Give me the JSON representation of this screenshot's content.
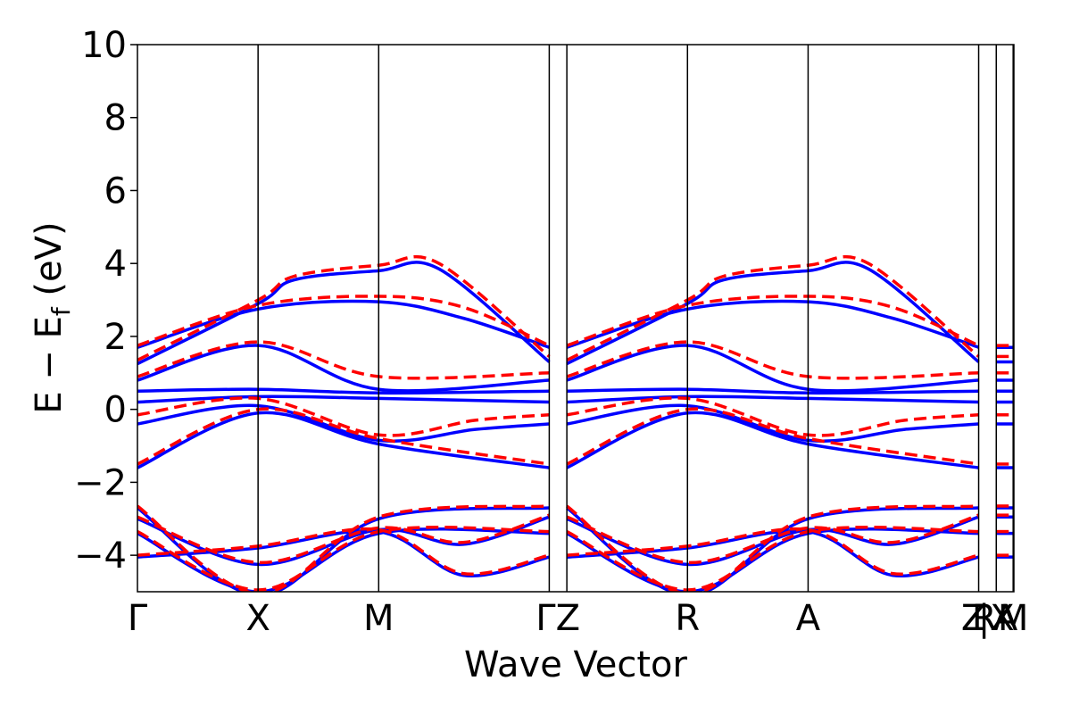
{
  "chart_data": {
    "type": "line",
    "title": "",
    "xlabel": "Wave Vector",
    "ylabel_main": "E − E",
    "ylabel_sub": "f",
    "ylabel_unit": " (eV)",
    "ylim": [
      -5,
      10
    ],
    "yticks": [
      -4,
      -2,
      0,
      2,
      4,
      6,
      8,
      10
    ],
    "ytick_labels": [
      "−4",
      "−2",
      "0",
      "2",
      "4",
      "6",
      "8",
      "10"
    ],
    "grid": false,
    "legend": "none",
    "colors": {
      "series_a": "#0000ff",
      "series_b": "#ff0000",
      "vlines": "#000000"
    },
    "line_styles": {
      "series_a": "solid",
      "series_b": "dashed"
    },
    "kpoints": [
      {
        "label": "Γ",
        "x": 0.0
      },
      {
        "label": "X",
        "x": 0.5
      },
      {
        "label": "M",
        "x": 1.0
      },
      {
        "label": "Γ",
        "x": 1.707
      },
      {
        "label": "Z",
        "x": 1.78
      },
      {
        "label": "R",
        "x": 2.28
      },
      {
        "label": "A",
        "x": 2.78
      },
      {
        "label": "Z",
        "x": 3.487
      },
      {
        "label": "R|X",
        "x": 3.56
      },
      {
        "label": "A",
        "x": 3.63
      },
      {
        "label": "M",
        "x": 3.633
      }
    ],
    "kpoint_tick_labels": [
      {
        "text": "Γ",
        "x": 0.0
      },
      {
        "text": "X",
        "x": 0.5
      },
      {
        "text": "M",
        "x": 1.0
      },
      {
        "text": "ΓZ",
        "x": 1.743
      },
      {
        "text": "R",
        "x": 2.28
      },
      {
        "text": "A",
        "x": 2.78
      },
      {
        "text": "Z",
        "x": 3.465
      },
      {
        "text": "R",
        "x": 3.51
      },
      {
        "text": "|X",
        "x": 3.56
      },
      {
        "text": "A",
        "x": 3.598
      },
      {
        "text": "M",
        "x": 3.63
      }
    ],
    "segment_breaks": [
      [
        0.0,
        0.5,
        1.0,
        1.707
      ],
      [
        1.78,
        2.28,
        2.78,
        3.487
      ],
      [
        3.56,
        3.633
      ]
    ],
    "series": [
      {
        "style": "solid",
        "color": "#0000ff",
        "bands": [
          {
            "x": [
              0,
              0.5,
              1.0,
              1.35,
              1.707
            ],
            "y": [
              -4.05,
              -3.8,
              -3.35,
              -4.55,
              -4.05
            ]
          },
          {
            "x": [
              0,
              0.5,
              1.0,
              1.35,
              1.707
            ],
            "y": [
              -3.0,
              -4.25,
              -3.3,
              -3.7,
              -2.95
            ]
          },
          {
            "x": [
              0,
              0.5,
              1.0,
              1.707
            ],
            "y": [
              -2.7,
              -5.1,
              -3.0,
              -2.7
            ]
          },
          {
            "x": [
              0,
              0.5,
              1.0,
              1.707
            ],
            "y": [
              -3.4,
              -5.0,
              -3.4,
              -3.4
            ]
          },
          {
            "x": [
              0,
              0.5,
              1.0,
              1.707
            ],
            "y": [
              -1.6,
              -0.1,
              -0.95,
              -1.6
            ]
          },
          {
            "x": [
              0,
              0.5,
              1.0,
              1.4,
              1.707
            ],
            "y": [
              -0.4,
              0.1,
              -0.85,
              -0.55,
              -0.4
            ]
          },
          {
            "x": [
              0,
              0.5,
              1.0,
              1.707
            ],
            "y": [
              0.2,
              0.35,
              0.3,
              0.2
            ]
          },
          {
            "x": [
              0,
              0.5,
              1.0,
              1.707
            ],
            "y": [
              0.5,
              0.55,
              0.45,
              0.5
            ]
          },
          {
            "x": [
              0,
              0.5,
              1.0,
              1.707
            ],
            "y": [
              0.8,
              1.75,
              0.55,
              0.8
            ]
          },
          {
            "x": [
              0,
              0.5,
              0.65,
              1.0,
              1.25,
              1.707
            ],
            "y": [
              1.25,
              2.9,
              3.55,
              3.8,
              3.85,
              1.3
            ]
          },
          {
            "x": [
              0,
              0.5,
              1.0,
              1.35,
              1.707
            ],
            "y": [
              1.7,
              2.75,
              2.95,
              2.5,
              1.7
            ]
          }
        ]
      },
      {
        "style": "dashed",
        "color": "#ff0000",
        "bands": [
          {
            "x": [
              0,
              0.5,
              1.0,
              1.35,
              1.707
            ],
            "y": [
              -4.0,
              -3.75,
              -3.3,
              -4.5,
              -4.0
            ]
          },
          {
            "x": [
              0,
              0.5,
              1.0,
              1.35,
              1.707
            ],
            "y": [
              -2.95,
              -4.2,
              -3.25,
              -3.65,
              -2.9
            ]
          },
          {
            "x": [
              0,
              0.5,
              1.0,
              1.707
            ],
            "y": [
              -2.65,
              -5.05,
              -2.95,
              -2.65
            ]
          },
          {
            "x": [
              0,
              0.5,
              1.0,
              1.707
            ],
            "y": [
              -3.35,
              -4.95,
              -3.35,
              -3.35
            ]
          },
          {
            "x": [
              0,
              0.5,
              1.0,
              1.707
            ],
            "y": [
              -1.5,
              0.0,
              -0.8,
              -1.5
            ]
          },
          {
            "x": [
              0,
              0.5,
              1.0,
              1.4,
              1.707
            ],
            "y": [
              -0.15,
              0.3,
              -0.7,
              -0.3,
              -0.15
            ]
          },
          {
            "x": [
              0,
              0.5,
              1.0,
              1.707
            ],
            "y": [
              0.9,
              1.85,
              0.9,
              1.0
            ]
          },
          {
            "x": [
              0,
              0.5,
              0.65,
              1.0,
              1.25,
              1.707
            ],
            "y": [
              1.35,
              3.0,
              3.65,
              3.95,
              4.0,
              1.45
            ]
          },
          {
            "x": [
              0,
              0.5,
              1.0,
              1.35,
              1.707
            ],
            "y": [
              1.75,
              2.85,
              3.1,
              2.8,
              1.75
            ]
          }
        ]
      }
    ]
  }
}
